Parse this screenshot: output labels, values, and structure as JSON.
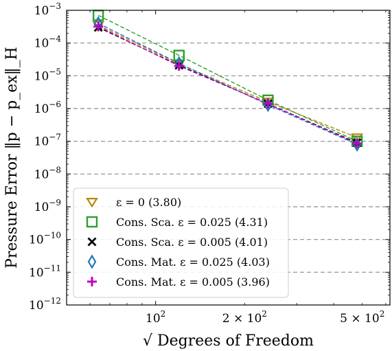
{
  "chart_data": {
    "type": "line",
    "xscale": "log",
    "yscale": "log",
    "xlabel": "√ Degrees of Freedom",
    "ylabel": "Pressure Error ‖p − p_ex‖_H",
    "xlim": [
      50,
      620
    ],
    "ylim": [
      1e-12,
      0.001
    ],
    "x_ticks": [
      {
        "value": 100,
        "base": "10",
        "exp": "2",
        "prefix": ""
      },
      {
        "value": 200,
        "base": "10",
        "exp": "2",
        "prefix": "2 × "
      },
      {
        "value": 500,
        "base": "10",
        "exp": "2",
        "prefix": "5 × "
      }
    ],
    "y_ticks": [
      {
        "value": 0.001,
        "base": "10",
        "exp": "−3"
      },
      {
        "value": 0.0001,
        "base": "10",
        "exp": "−4"
      },
      {
        "value": 1e-05,
        "base": "10",
        "exp": "−5"
      },
      {
        "value": 1e-06,
        "base": "10",
        "exp": "−6"
      },
      {
        "value": 1e-07,
        "base": "10",
        "exp": "−7"
      },
      {
        "value": 1e-08,
        "base": "10",
        "exp": "−8"
      },
      {
        "value": 1e-09,
        "base": "10",
        "exp": "−9"
      },
      {
        "value": 1e-10,
        "base": "10",
        "exp": "−10"
      },
      {
        "value": 1e-11,
        "base": "10",
        "exp": "−11"
      },
      {
        "value": 1e-12,
        "base": "10",
        "exp": "−12"
      }
    ],
    "grid": "horizontal dashed at major y ticks",
    "legend_position": "lower-left",
    "series": [
      {
        "name": "ε = 0 (3.80)",
        "marker": "triangle-down",
        "color": "#b8860b",
        "x": [
          64,
          120,
          240,
          480
        ],
        "y": [
          0.00035,
          2.3e-05,
          1.6e-06,
          1.3e-07
        ]
      },
      {
        "name": "Cons. Sca. ε = 0.025 (4.31)",
        "marker": "square",
        "color": "#2ca02c",
        "x": [
          64,
          120,
          240,
          480
        ],
        "y": [
          0.0007,
          4.2e-05,
          1.8e-06,
          1e-07
        ]
      },
      {
        "name": "Cons. Sca. ε = 0.005 (4.01)",
        "marker": "x",
        "color": "#000000",
        "x": [
          64,
          120,
          240,
          480
        ],
        "y": [
          0.0003,
          2.1e-05,
          1.4e-06,
          9e-08
        ]
      },
      {
        "name": "Cons. Mat. ε = 0.025 (4.03)",
        "marker": "thin-diamond",
        "color": "#1f77b4",
        "x": [
          64,
          120,
          240,
          480
        ],
        "y": [
          0.0004,
          2.4e-05,
          1.3e-06,
          8e-08
        ]
      },
      {
        "name": "Cons. Mat. ε = 0.005 (3.96)",
        "marker": "plus",
        "color": "#c000c0",
        "x": [
          64,
          120,
          240,
          480
        ],
        "y": [
          0.00032,
          2e-05,
          1.4e-06,
          8.5e-08
        ]
      }
    ]
  }
}
